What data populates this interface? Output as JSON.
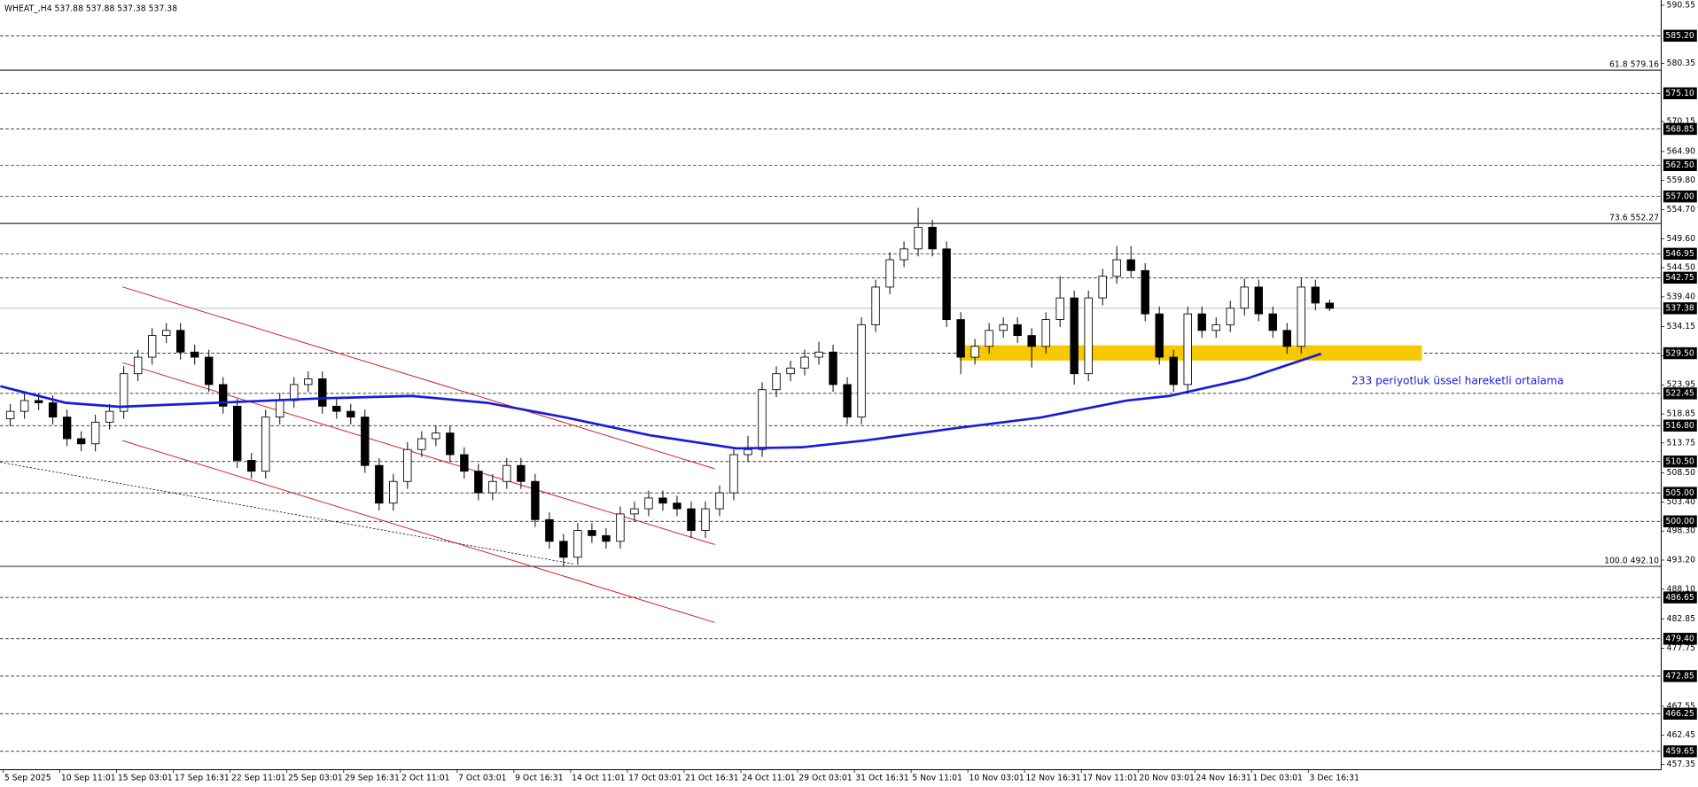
{
  "chart_data": {
    "type": "candlestick",
    "title": "WHEAT_,H4  537.88 537.88 537.38 537.38",
    "annotation": "233 periyotluk üssel hareketli ortalama",
    "ylim": [
      456.43,
      591.47
    ],
    "yticks": [
      590.55,
      580.35,
      570.15,
      {
        "value": 564.9,
        "label": "564.90"
      },
      {
        "value": 559.8,
        "label": "559.80"
      },
      {
        "value": 554.7,
        "label": "554.70"
      },
      {
        "value": 549.6,
        "label": "549.60"
      },
      {
        "value": 544.5,
        "label": "544.50"
      },
      {
        "value": 539.4,
        "label": "539.40"
      },
      534.15,
      529.05,
      523.95,
      518.85,
      513.75,
      {
        "value": 508.5,
        "label": "508.50"
      },
      {
        "value": 503.4,
        "label": "503.40"
      },
      {
        "value": 498.3,
        "label": "498.30"
      },
      {
        "value": 493.2,
        "label": "493.20"
      },
      {
        "value": 488.1,
        "label": "488.10"
      },
      482.85,
      477.75,
      467.55,
      462.45,
      457.35
    ],
    "time_labels": [
      "5 Sep 2025",
      "10 Sep 11:01",
      "15 Sep 03:01",
      "17 Sep 16:31",
      "22 Sep 11:01",
      "25 Sep 03:01",
      "29 Sep 16:31",
      "2 Oct 11:01",
      "7 Oct 03:01",
      "9 Oct 16:31",
      "14 Oct 11:01",
      "17 Oct 03:01",
      "21 Oct 16:31",
      "24 Oct 11:01",
      "29 Oct 03:01",
      "31 Oct 16:31",
      "5 Nov 11:01",
      "10 Nov 03:01",
      "12 Nov 16:31",
      "17 Nov 11:01",
      "20 Nov 03:01",
      "24 Nov 16:31",
      "1 Dec 03:01",
      "3 Dec 16:31"
    ],
    "levels": [
      {
        "value": 585.2,
        "label": "585.20"
      },
      {
        "value": 575.1,
        "label": "575.10"
      },
      568.85,
      {
        "value": 562.5,
        "label": "562.50"
      },
      {
        "value": 557,
        "label": "557.00"
      },
      546.95,
      542.75,
      {
        "value": 529.5,
        "label": "529.50"
      },
      522.45,
      {
        "value": 516.8,
        "label": "516.80"
      },
      {
        "value": 510.5,
        "label": "510.50"
      },
      {
        "value": 505,
        "label": "505.00"
      },
      {
        "value": 500,
        "label": "500.00"
      },
      486.65,
      {
        "value": 479.4,
        "label": "479.40"
      },
      472.85,
      466.25,
      459.65
    ],
    "current_price": 537.38,
    "fib_levels": [
      {
        "value": 579.16,
        "label": "61.8 579.16"
      },
      {
        "value": 552.27,
        "label": "73.6 552.27"
      },
      {
        "value": 492.1,
        "label": "100.0 492.10"
      }
    ],
    "ema": {
      "color": "#1a1adc",
      "x": [
        -0.7,
        3.9,
        7.7,
        14.5,
        22.2,
        28.3,
        33.6,
        39.0,
        45.1,
        51.2,
        55.8,
        60.3,
        66.5,
        72.6,
        78.7,
        81.7,
        87.1,
        92.4
      ],
      "values": [
        523.7,
        520.8,
        520.1,
        520.8,
        521.6,
        522.0,
        520.8,
        518.3,
        515.1,
        512.8,
        513.0,
        514.2,
        516.3,
        518.2,
        521.2,
        522.0,
        525.0,
        529.4
      ]
    },
    "ohlc": [
      [
        518.0,
        520.6,
        516.7,
        519.3
      ],
      [
        519.3,
        522.5,
        518.0,
        521.2
      ],
      [
        521.2,
        522.5,
        519.5,
        520.8
      ],
      [
        520.8,
        522.1,
        517.0,
        518.3
      ],
      [
        518.3,
        519.6,
        513.2,
        514.5
      ],
      [
        514.5,
        515.8,
        512.3,
        513.6
      ],
      [
        513.6,
        518.7,
        512.3,
        517.4
      ],
      [
        517.4,
        520.6,
        516.1,
        519.3
      ],
      [
        519.3,
        527.2,
        518.0,
        525.9
      ],
      [
        525.9,
        530.1,
        524.6,
        528.8
      ],
      [
        528.8,
        533.9,
        527.5,
        532.6
      ],
      [
        532.6,
        534.8,
        531.3,
        533.5
      ],
      [
        533.5,
        534.8,
        528.4,
        529.7
      ],
      [
        529.7,
        531.0,
        527.5,
        528.8
      ],
      [
        528.8,
        530.1,
        522.7,
        524.0
      ],
      [
        524.0,
        525.3,
        518.9,
        520.2
      ],
      [
        520.2,
        521.5,
        509.4,
        510.7
      ],
      [
        510.7,
        512.0,
        507.5,
        508.8
      ],
      [
        508.8,
        519.6,
        507.5,
        518.3
      ],
      [
        518.3,
        522.5,
        517.0,
        521.2
      ],
      [
        521.2,
        525.3,
        519.9,
        524.0
      ],
      [
        524.0,
        526.3,
        522.7,
        525.0
      ],
      [
        525.0,
        526.3,
        518.9,
        520.2
      ],
      [
        520.2,
        521.5,
        518.0,
        519.3
      ],
      [
        519.3,
        520.6,
        517.0,
        518.3
      ],
      [
        518.3,
        519.6,
        508.5,
        509.8
      ],
      [
        509.8,
        511.1,
        501.9,
        503.2
      ],
      [
        503.2,
        508.3,
        501.9,
        507.0
      ],
      [
        507.0,
        513.9,
        505.7,
        512.6
      ],
      [
        512.6,
        515.8,
        511.3,
        514.5
      ],
      [
        514.5,
        516.8,
        513.2,
        515.5
      ],
      [
        515.5,
        516.8,
        510.4,
        511.7
      ],
      [
        511.7,
        513.0,
        507.5,
        508.8
      ],
      [
        508.8,
        510.1,
        503.7,
        505.0
      ],
      [
        505.0,
        508.3,
        503.7,
        507.0
      ],
      [
        507.0,
        511.1,
        505.7,
        509.8
      ],
      [
        509.8,
        511.1,
        505.7,
        507.0
      ],
      [
        507.0,
        508.3,
        499.0,
        500.3
      ],
      [
        500.3,
        501.6,
        495.2,
        496.5
      ],
      [
        496.5,
        497.8,
        492.1,
        493.7
      ],
      [
        493.7,
        499.7,
        492.4,
        498.4
      ],
      [
        498.4,
        499.7,
        496.2,
        497.5
      ],
      [
        497.5,
        498.8,
        495.2,
        496.5
      ],
      [
        496.5,
        502.6,
        495.2,
        501.3
      ],
      [
        501.3,
        503.5,
        500.0,
        502.2
      ],
      [
        502.2,
        505.4,
        500.9,
        504.1
      ],
      [
        504.1,
        505.4,
        501.9,
        503.2
      ],
      [
        503.2,
        504.5,
        500.9,
        502.2
      ],
      [
        502.2,
        503.5,
        497.1,
        498.4
      ],
      [
        498.4,
        503.5,
        497.1,
        502.2
      ],
      [
        502.2,
        506.3,
        500.9,
        505.0
      ],
      [
        505.0,
        513.0,
        503.7,
        511.7
      ],
      [
        511.7,
        515.0,
        510.4,
        512.6
      ],
      [
        512.6,
        524.4,
        511.3,
        523.1
      ],
      [
        523.1,
        527.2,
        521.8,
        525.9
      ],
      [
        525.9,
        528.2,
        524.6,
        526.9
      ],
      [
        526.9,
        530.1,
        525.6,
        528.8
      ],
      [
        528.8,
        531.5,
        527.5,
        529.7
      ],
      [
        529.7,
        531.0,
        522.7,
        524.0
      ],
      [
        524.0,
        525.3,
        517.0,
        518.3
      ],
      [
        518.3,
        535.8,
        517.0,
        534.5
      ],
      [
        534.5,
        542.4,
        533.2,
        541.1
      ],
      [
        541.1,
        547.2,
        539.8,
        545.9
      ],
      [
        545.9,
        549.1,
        544.6,
        547.8
      ],
      [
        547.8,
        555.0,
        546.5,
        551.6
      ],
      [
        551.6,
        552.9,
        546.5,
        547.8
      ],
      [
        547.8,
        549.1,
        534.1,
        535.4
      ],
      [
        535.4,
        536.7,
        525.8,
        528.8
      ],
      [
        528.8,
        532.0,
        527.5,
        530.7
      ],
      [
        530.7,
        534.8,
        529.4,
        533.5
      ],
      [
        533.5,
        535.8,
        532.2,
        534.5
      ],
      [
        534.5,
        535.8,
        531.3,
        532.6
      ],
      [
        532.6,
        533.9,
        527.0,
        530.7
      ],
      [
        530.7,
        536.7,
        529.4,
        535.4
      ],
      [
        535.4,
        543.0,
        534.1,
        539.2
      ],
      [
        539.2,
        540.5,
        524.0,
        525.9
      ],
      [
        525.9,
        540.5,
        524.6,
        539.2
      ],
      [
        539.2,
        544.3,
        537.9,
        543.0
      ],
      [
        543.0,
        548.3,
        541.7,
        545.9
      ],
      [
        545.9,
        548.3,
        542.7,
        544.0
      ],
      [
        544.0,
        545.3,
        535.1,
        536.4
      ],
      [
        536.4,
        537.7,
        527.5,
        528.8
      ],
      [
        528.8,
        530.1,
        522.7,
        524.0
      ],
      [
        524.0,
        537.7,
        522.7,
        536.4
      ],
      [
        536.4,
        537.7,
        532.2,
        533.5
      ],
      [
        533.5,
        535.8,
        532.2,
        534.5
      ],
      [
        534.5,
        538.7,
        533.2,
        537.4
      ],
      [
        537.4,
        542.6,
        536.1,
        541.1
      ],
      [
        541.1,
        542.4,
        535.1,
        536.4
      ],
      [
        536.4,
        537.7,
        532.2,
        533.5
      ],
      [
        533.5,
        534.8,
        529.4,
        530.7
      ],
      [
        530.7,
        542.6,
        529.4,
        541.1
      ],
      [
        541.1,
        542.4,
        537.0,
        538.3
      ],
      [
        538.3,
        538.9,
        536.9,
        537.38
      ]
    ]
  }
}
